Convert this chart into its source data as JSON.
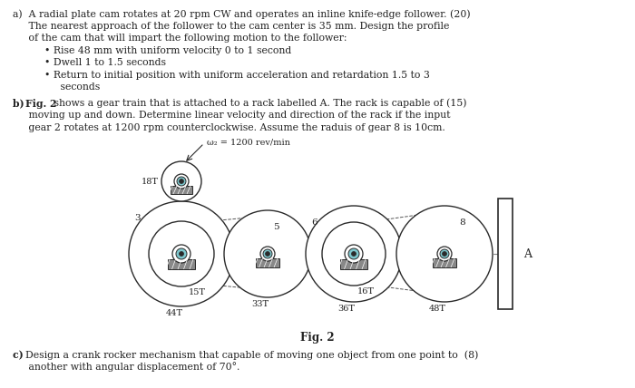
{
  "bg_color": "#ffffff",
  "text_color": "#222222",
  "fig_width": 7.0,
  "fig_height": 4.28,
  "text_a1": "a)  A radial plate cam rotates at 20 rpm CW and operates an inline knife-edge follower. (20)",
  "text_a2": "     The nearest approach of the follower to the cam center is 35 mm. Design the profile",
  "text_a3": "     of the cam that will impart the following motion to the follower:",
  "text_a4": "          • Rise 48 mm with uniform velocity 0 to 1 second",
  "text_a5": "          • Dwell 1 to 1.5 seconds",
  "text_a6": "          • Return to initial position with uniform acceleration and retardation 1.5 to 3",
  "text_a7": "               seconds",
  "text_b_pre": "b) ",
  "text_b_fig": "Fig. 2",
  "text_b_rest": " shows a gear train that is attached to a rack labelled A. The rack is capable of (15)",
  "text_b2": "     moving up and down. Determine linear velocity and direction of the rack if the input",
  "text_b3": "     gear 2 rotates at 1200 rpm counterclockwise. Assume the raduis of gear 8 is 10cm.",
  "text_c_pre": "c) ",
  "text_c_rest": "Design a crank rocker mechanism that capable of moving one object from one point to  (8)",
  "text_c2": "     another with angular displacement of 70°.",
  "fig_caption": "Fig. 2",
  "omega_label": "ω₂ = 1200 rev/min",
  "rack_label": "A",
  "label_18T": "18T",
  "label_15T": "15T",
  "label_44T": "44T",
  "label_33T": "33T",
  "label_16T": "16T",
  "label_36T": "36T",
  "label_48T": "48T"
}
